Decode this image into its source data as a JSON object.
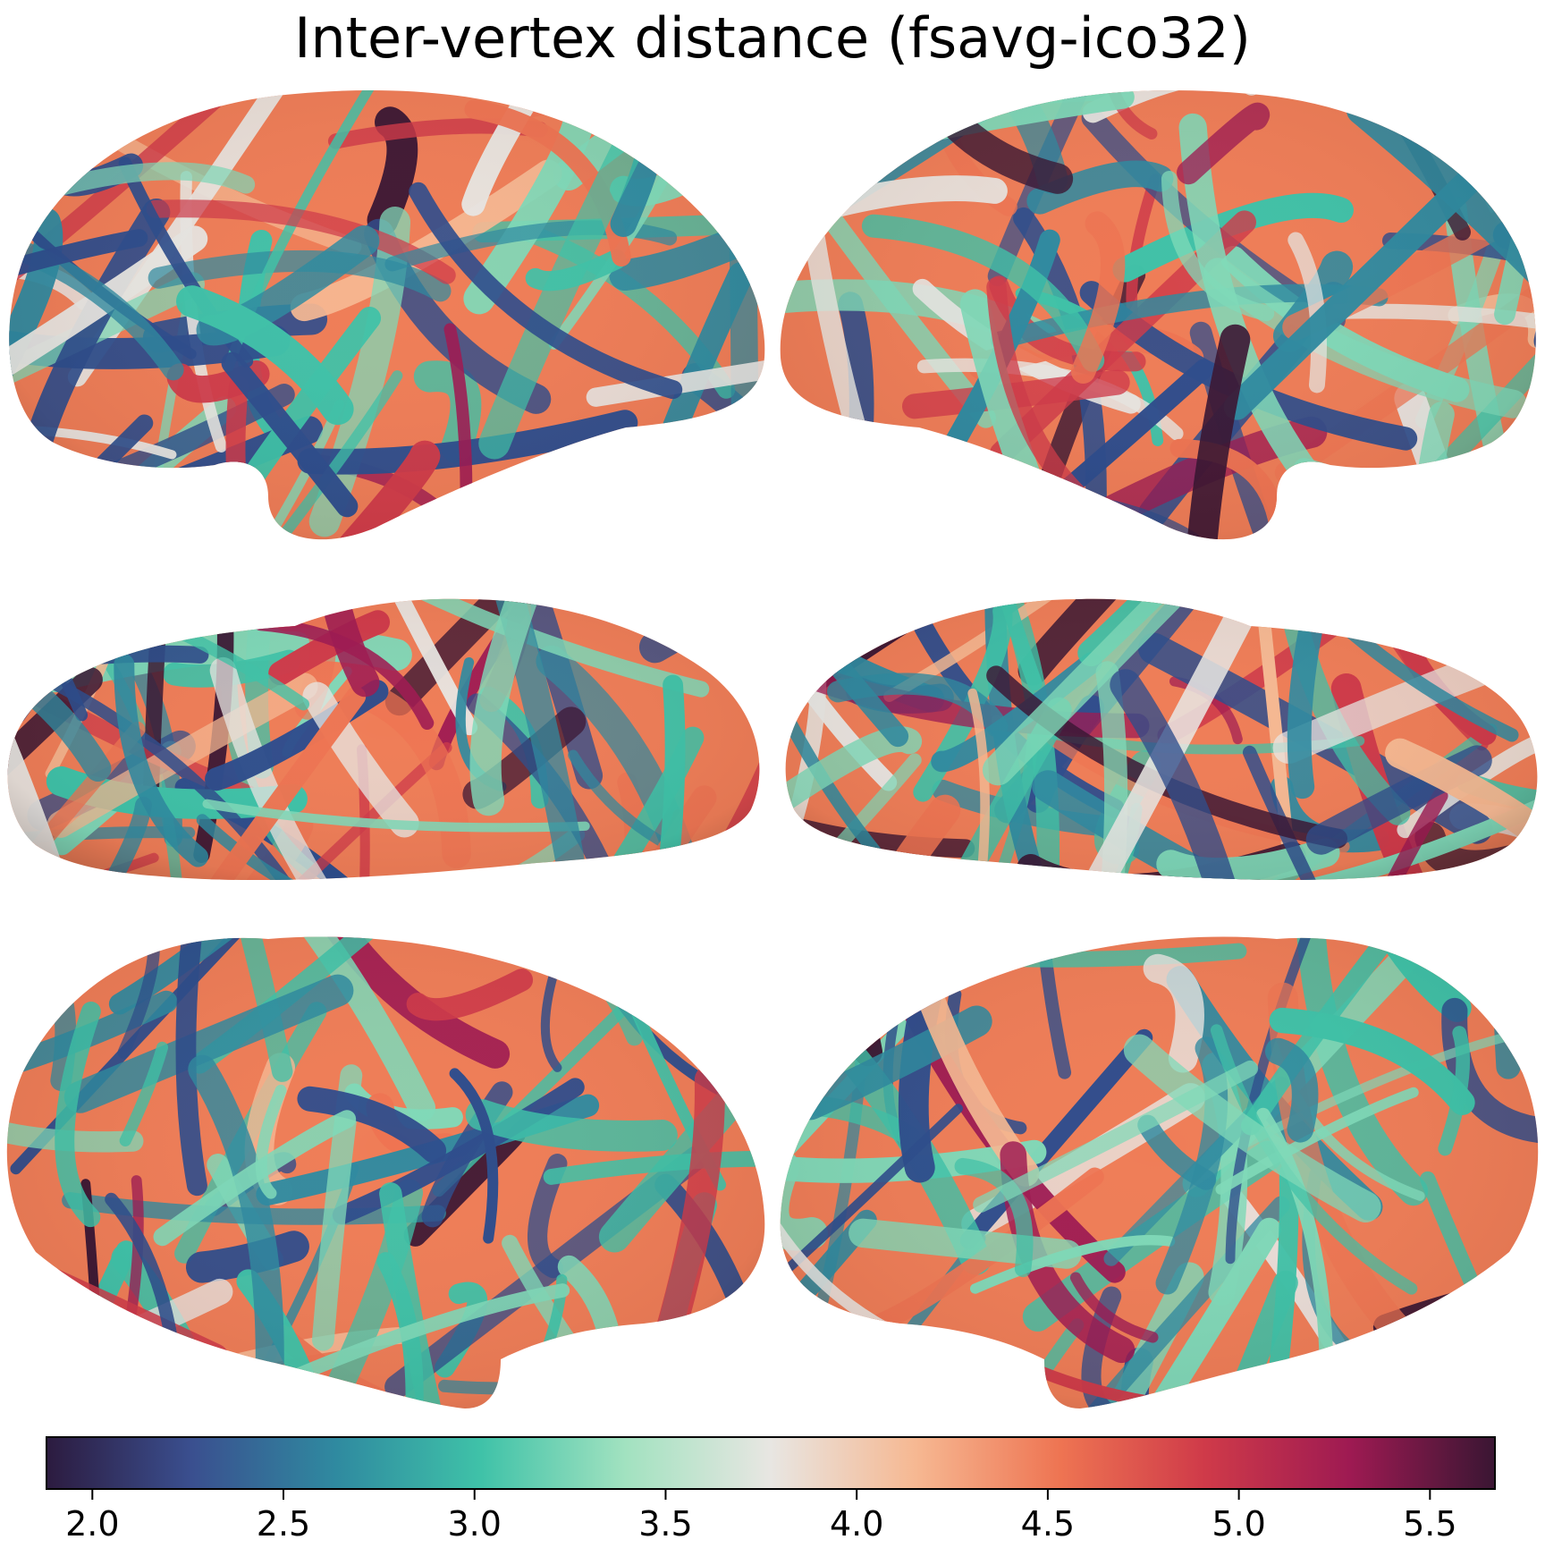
{
  "figure": {
    "title": "Inter-vertex distance (fsavg-ico32)"
  },
  "colormap": {
    "name": "Spectral_r",
    "stops": [
      "#2c1b3f",
      "#3a4f8f",
      "#2f8aa0",
      "#3fc2a8",
      "#a2e2c0",
      "#e8e6e2",
      "#f6b892",
      "#ee7452",
      "#cf3a49",
      "#9e1a52",
      "#3a1633"
    ]
  },
  "colorbar": {
    "vmin": 1.88,
    "vmax": 5.67,
    "ticks": [
      2.0,
      2.5,
      3.0,
      3.5,
      4.0,
      4.5,
      5.0,
      5.5
    ],
    "tick_labels": [
      "2.0",
      "2.5",
      "3.0",
      "3.5",
      "4.0",
      "4.5",
      "5.0",
      "5.5"
    ]
  },
  "panels": [
    {
      "view": "lateral",
      "hemisphere": "left"
    },
    {
      "view": "lateral",
      "hemisphere": "right"
    },
    {
      "view": "ventral",
      "hemisphere": "left"
    },
    {
      "view": "ventral",
      "hemisphere": "right"
    },
    {
      "view": "medial",
      "hemisphere": "left"
    },
    {
      "view": "medial",
      "hemisphere": "right"
    }
  ]
}
